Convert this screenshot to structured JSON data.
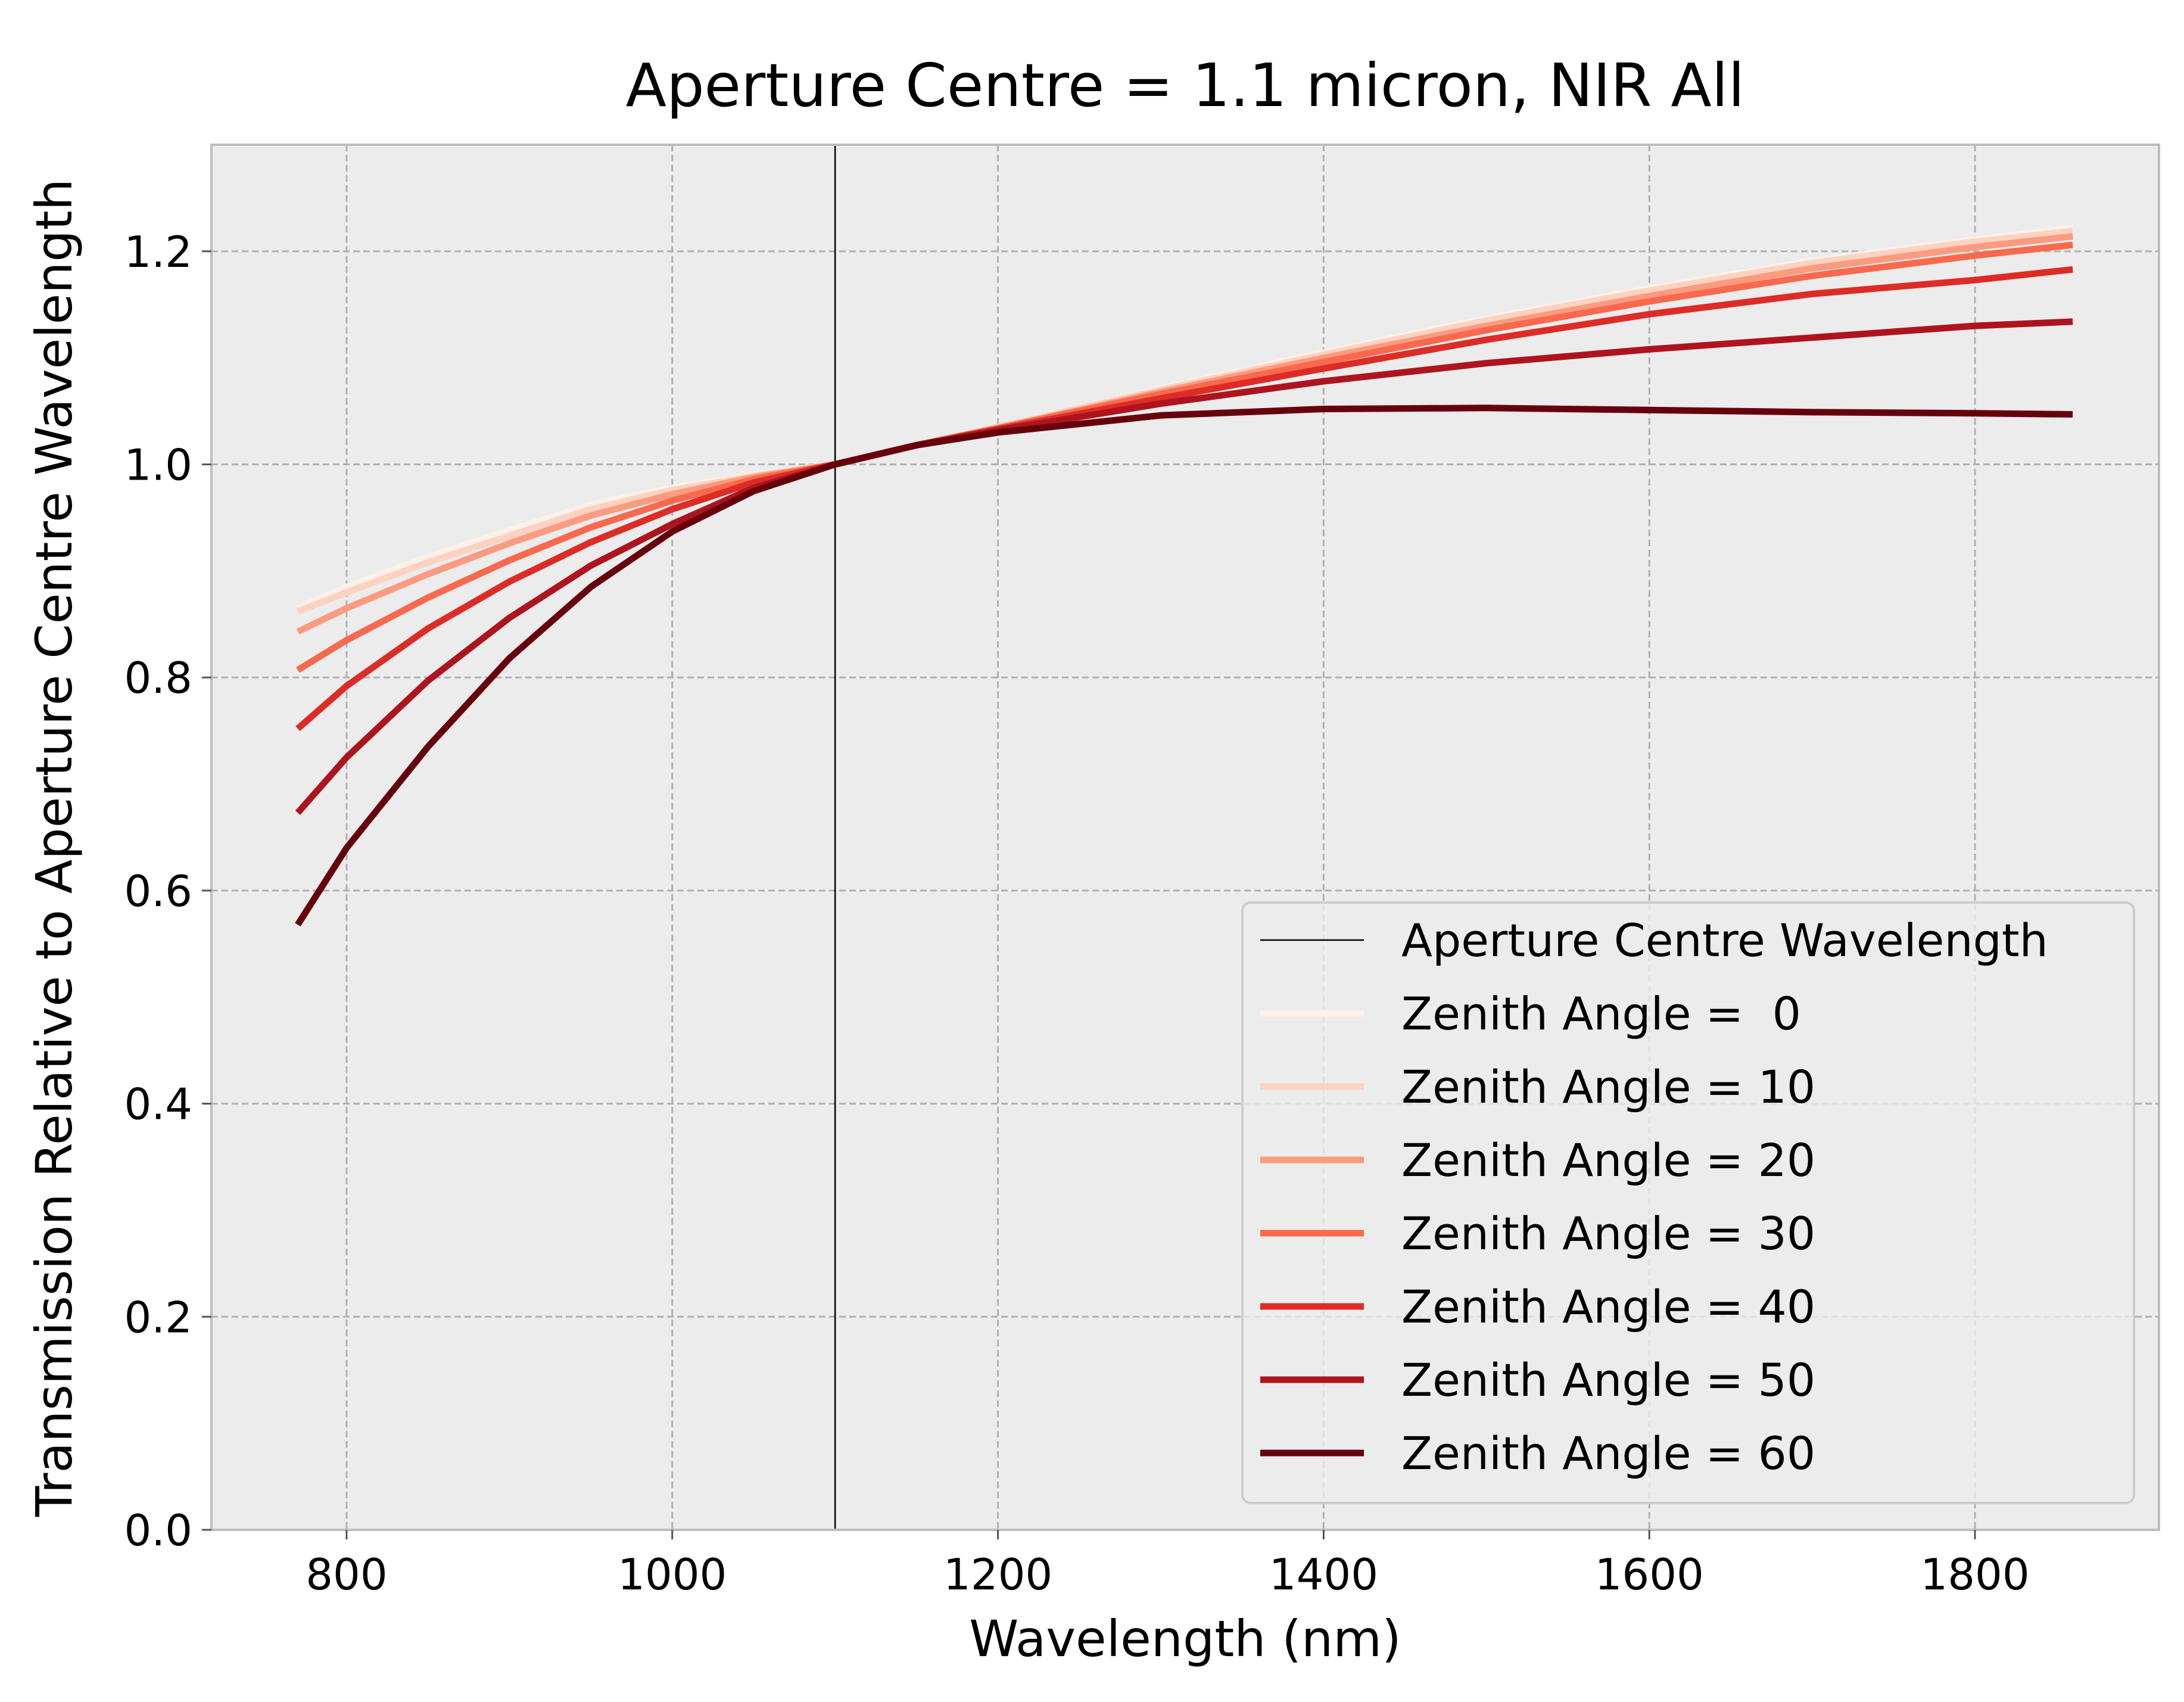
{
  "chart_data": {
    "type": "line",
    "title": "Aperture Centre = 1.1 micron, NIR All",
    "xlabel": "Wavelength (nm)",
    "ylabel": "Transmission Relative to Aperture Centre Wavelength",
    "xlim": [
      717,
      1913
    ],
    "ylim": [
      0.0,
      1.3
    ],
    "xticks": [
      800,
      1000,
      1200,
      1400,
      1600,
      1800
    ],
    "xtick_labels": [
      "800",
      "1000",
      "1200",
      "1400",
      "1600",
      "1800"
    ],
    "yticks": [
      0.0,
      0.2,
      0.4,
      0.6,
      0.8,
      1.0,
      1.2
    ],
    "ytick_labels": [
      "0.0",
      "0.2",
      "0.4",
      "0.6",
      "0.8",
      "1.0",
      "1.2"
    ],
    "grid": true,
    "legend_position": "lower-right",
    "vline": {
      "x": 1100,
      "label": "Aperture Centre Wavelength",
      "color": "#000000"
    },
    "x": [
      770,
      800,
      850,
      900,
      950,
      1000,
      1050,
      1100,
      1150,
      1200,
      1300,
      1400,
      1500,
      1600,
      1700,
      1800,
      1860
    ],
    "series": [
      {
        "name": "Zenith Angle =  0",
        "color": "#fff0e9",
        "values": [
          0.865,
          0.885,
          0.913,
          0.938,
          0.962,
          0.978,
          0.99,
          1.0,
          1.018,
          1.035,
          1.071,
          1.105,
          1.137,
          1.165,
          1.191,
          1.211,
          1.222
        ]
      },
      {
        "name": "Zenith Angle = 10",
        "color": "#fcd2c0",
        "values": [
          0.862,
          0.88,
          0.908,
          0.933,
          0.958,
          0.976,
          0.989,
          1.0,
          1.018,
          1.035,
          1.07,
          1.103,
          1.135,
          1.163,
          1.189,
          1.209,
          1.219
        ]
      },
      {
        "name": "Zenith Angle = 20",
        "color": "#fc9b7f",
        "values": [
          0.843,
          0.865,
          0.897,
          0.926,
          0.952,
          0.972,
          0.988,
          1.0,
          1.018,
          1.034,
          1.068,
          1.1,
          1.13,
          1.158,
          1.184,
          1.204,
          1.214
        ]
      },
      {
        "name": "Zenith Angle = 30",
        "color": "#f9694e",
        "values": [
          0.807,
          0.835,
          0.875,
          0.91,
          0.941,
          0.966,
          0.986,
          1.0,
          1.018,
          1.034,
          1.066,
          1.096,
          1.126,
          1.153,
          1.177,
          1.196,
          1.206
        ]
      },
      {
        "name": "Zenith Angle = 40",
        "color": "#dd2c26",
        "values": [
          0.752,
          0.792,
          0.846,
          0.89,
          0.927,
          0.958,
          0.983,
          1.0,
          1.018,
          1.033,
          1.062,
          1.09,
          1.117,
          1.141,
          1.16,
          1.173,
          1.183
        ]
      },
      {
        "name": "Zenith Angle = 50",
        "color": "#ae141e",
        "values": [
          0.673,
          0.725,
          0.797,
          0.856,
          0.905,
          0.944,
          0.978,
          1.0,
          1.018,
          1.032,
          1.057,
          1.078,
          1.095,
          1.108,
          1.119,
          1.13,
          1.134
        ]
      },
      {
        "name": "Zenith Angle = 60",
        "color": "#67000d",
        "values": [
          0.568,
          0.64,
          0.735,
          0.818,
          0.885,
          0.937,
          0.975,
          1.0,
          1.018,
          1.03,
          1.046,
          1.052,
          1.053,
          1.051,
          1.049,
          1.048,
          1.047
        ]
      }
    ]
  }
}
